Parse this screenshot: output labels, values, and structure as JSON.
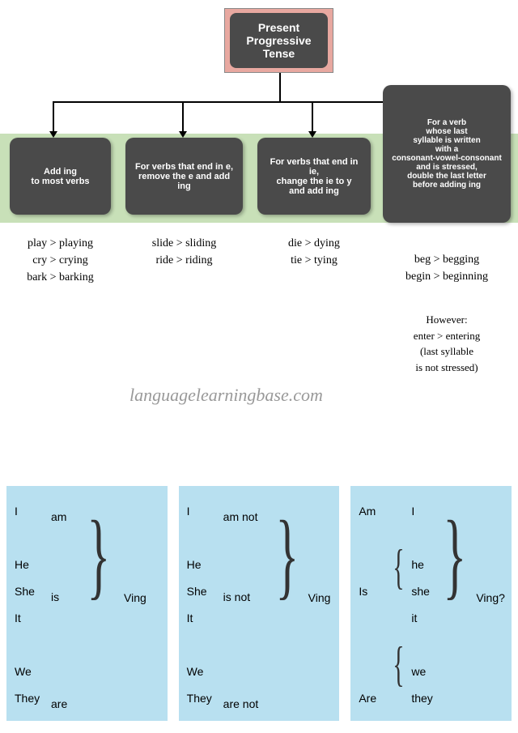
{
  "title": "Present\nProgressive\nTense",
  "rules": {
    "r1": "Add ing\nto most verbs",
    "r2": "For verbs that end in e,\nremove the e and add ing",
    "r3": "For verbs that end in ie,\nchange the ie to y\nand add ing",
    "r4": "For a verb\nwhose last\nsyllable is written\nwith a\nconsonant-vowel-consonant\nand is stressed,\ndouble the last letter\nbefore adding ing"
  },
  "examples": {
    "e1": "play > playing\ncry > crying\nbark > barking",
    "e2": "slide > sliding\nride > riding",
    "e3": "die > dying\ntie > tying",
    "e4": "beg > begging\nbegin > beginning",
    "e5": "However:\nenter > entering\n(last syllable\nis not stressed)"
  },
  "watermark": "languagelearningbase.com",
  "panels": {
    "p1": {
      "c1": [
        "I",
        "",
        "He",
        "She",
        "It",
        "",
        "We",
        "They"
      ],
      "c2": [
        "am",
        "",
        "",
        "is",
        "",
        "",
        "",
        "are"
      ],
      "c3": "Ving"
    },
    "p2": {
      "c1": [
        "I",
        "",
        "He",
        "She",
        "It",
        "",
        "We",
        "They"
      ],
      "c2": [
        "am not",
        "",
        "",
        "is not",
        "",
        "",
        "",
        "are not"
      ],
      "c3": "Ving"
    },
    "p3": {
      "c1": [
        "Am",
        "",
        "",
        "Is",
        "",
        "",
        "",
        "Are"
      ],
      "c2": [
        "I",
        "",
        "he",
        "she",
        "it",
        "",
        "we",
        "they"
      ],
      "c3": "Ving?"
    }
  }
}
